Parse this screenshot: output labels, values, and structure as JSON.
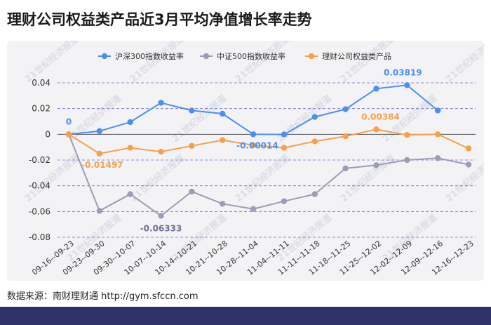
{
  "page": {
    "title": "理财公司权益类产品近3月平均净值增长率走势",
    "source": "数据来源：南财理财通 http://gym.sfccn.com",
    "watermark": "21世纪经济报道"
  },
  "colors": {
    "hs300": "#4d8ff0",
    "zz500": "#9b9db4",
    "product": "#f6a04d",
    "footer": "#2e3468",
    "grid": "#6a6ac8"
  },
  "chart_data": {
    "type": "line",
    "categories": [
      "09-16--09-23",
      "09-23--09-30",
      "09-30--10-07",
      "10-07--10-14",
      "10-14--10-21",
      "10-21--10-28",
      "10-28--11-04",
      "11-04--11-11",
      "11-11--11-18",
      "11-18--11-25",
      "11-25--12-02",
      "12-02--12-09",
      "12-09--12-16",
      "12-16--12-23"
    ],
    "series": [
      {
        "name": "沪深300指数收益率",
        "color": "#4d8ff0",
        "values": [
          0,
          0.0025,
          0.0095,
          0.0245,
          0.0185,
          0.016,
          0.0,
          -0.00014,
          0.0135,
          0.0195,
          0.0355,
          0.03819,
          0.0185,
          null
        ]
      },
      {
        "name": "中证500指数收益率",
        "color": "#9b9db4",
        "values": [
          0,
          -0.0595,
          -0.0465,
          -0.06333,
          -0.0445,
          -0.054,
          -0.058,
          -0.052,
          -0.0465,
          -0.0265,
          -0.024,
          -0.02,
          -0.0185,
          -0.0235
        ]
      },
      {
        "name": "理财公司权益类产品",
        "color": "#f6a04d",
        "values": [
          0,
          -0.01497,
          -0.0105,
          -0.0135,
          -0.009,
          -0.0045,
          -0.0085,
          -0.0105,
          -0.0055,
          -0.0015,
          0.00384,
          -0.0005,
          0.0,
          -0.011
        ]
      }
    ],
    "data_labels": [
      {
        "series": 0,
        "index": 0,
        "text": "0",
        "color": "#4d8ff0"
      },
      {
        "series": 2,
        "index": 1,
        "text": "-0.01497",
        "color": "#f6a04d"
      },
      {
        "series": 1,
        "index": 3,
        "text": "-0.06333",
        "color": "#6e7095"
      },
      {
        "series": 0,
        "index": 7,
        "text": "-0.00014",
        "color": "#4d8ff0"
      },
      {
        "series": 2,
        "index": 10,
        "text": "0.00384",
        "color": "#f6a04d"
      },
      {
        "series": 0,
        "index": 11,
        "text": "0.03819",
        "color": "#4d8ff0"
      }
    ],
    "ylim": [
      -0.08,
      0.04
    ],
    "yticks": [
      "0.04",
      "0.02",
      "0",
      "-0.02",
      "-0.04",
      "-0.06",
      "-0.08"
    ],
    "ytick_values": [
      0.04,
      0.02,
      0,
      -0.02,
      -0.04,
      -0.06,
      -0.08
    ],
    "legend_position": "top-center",
    "grid": true
  }
}
